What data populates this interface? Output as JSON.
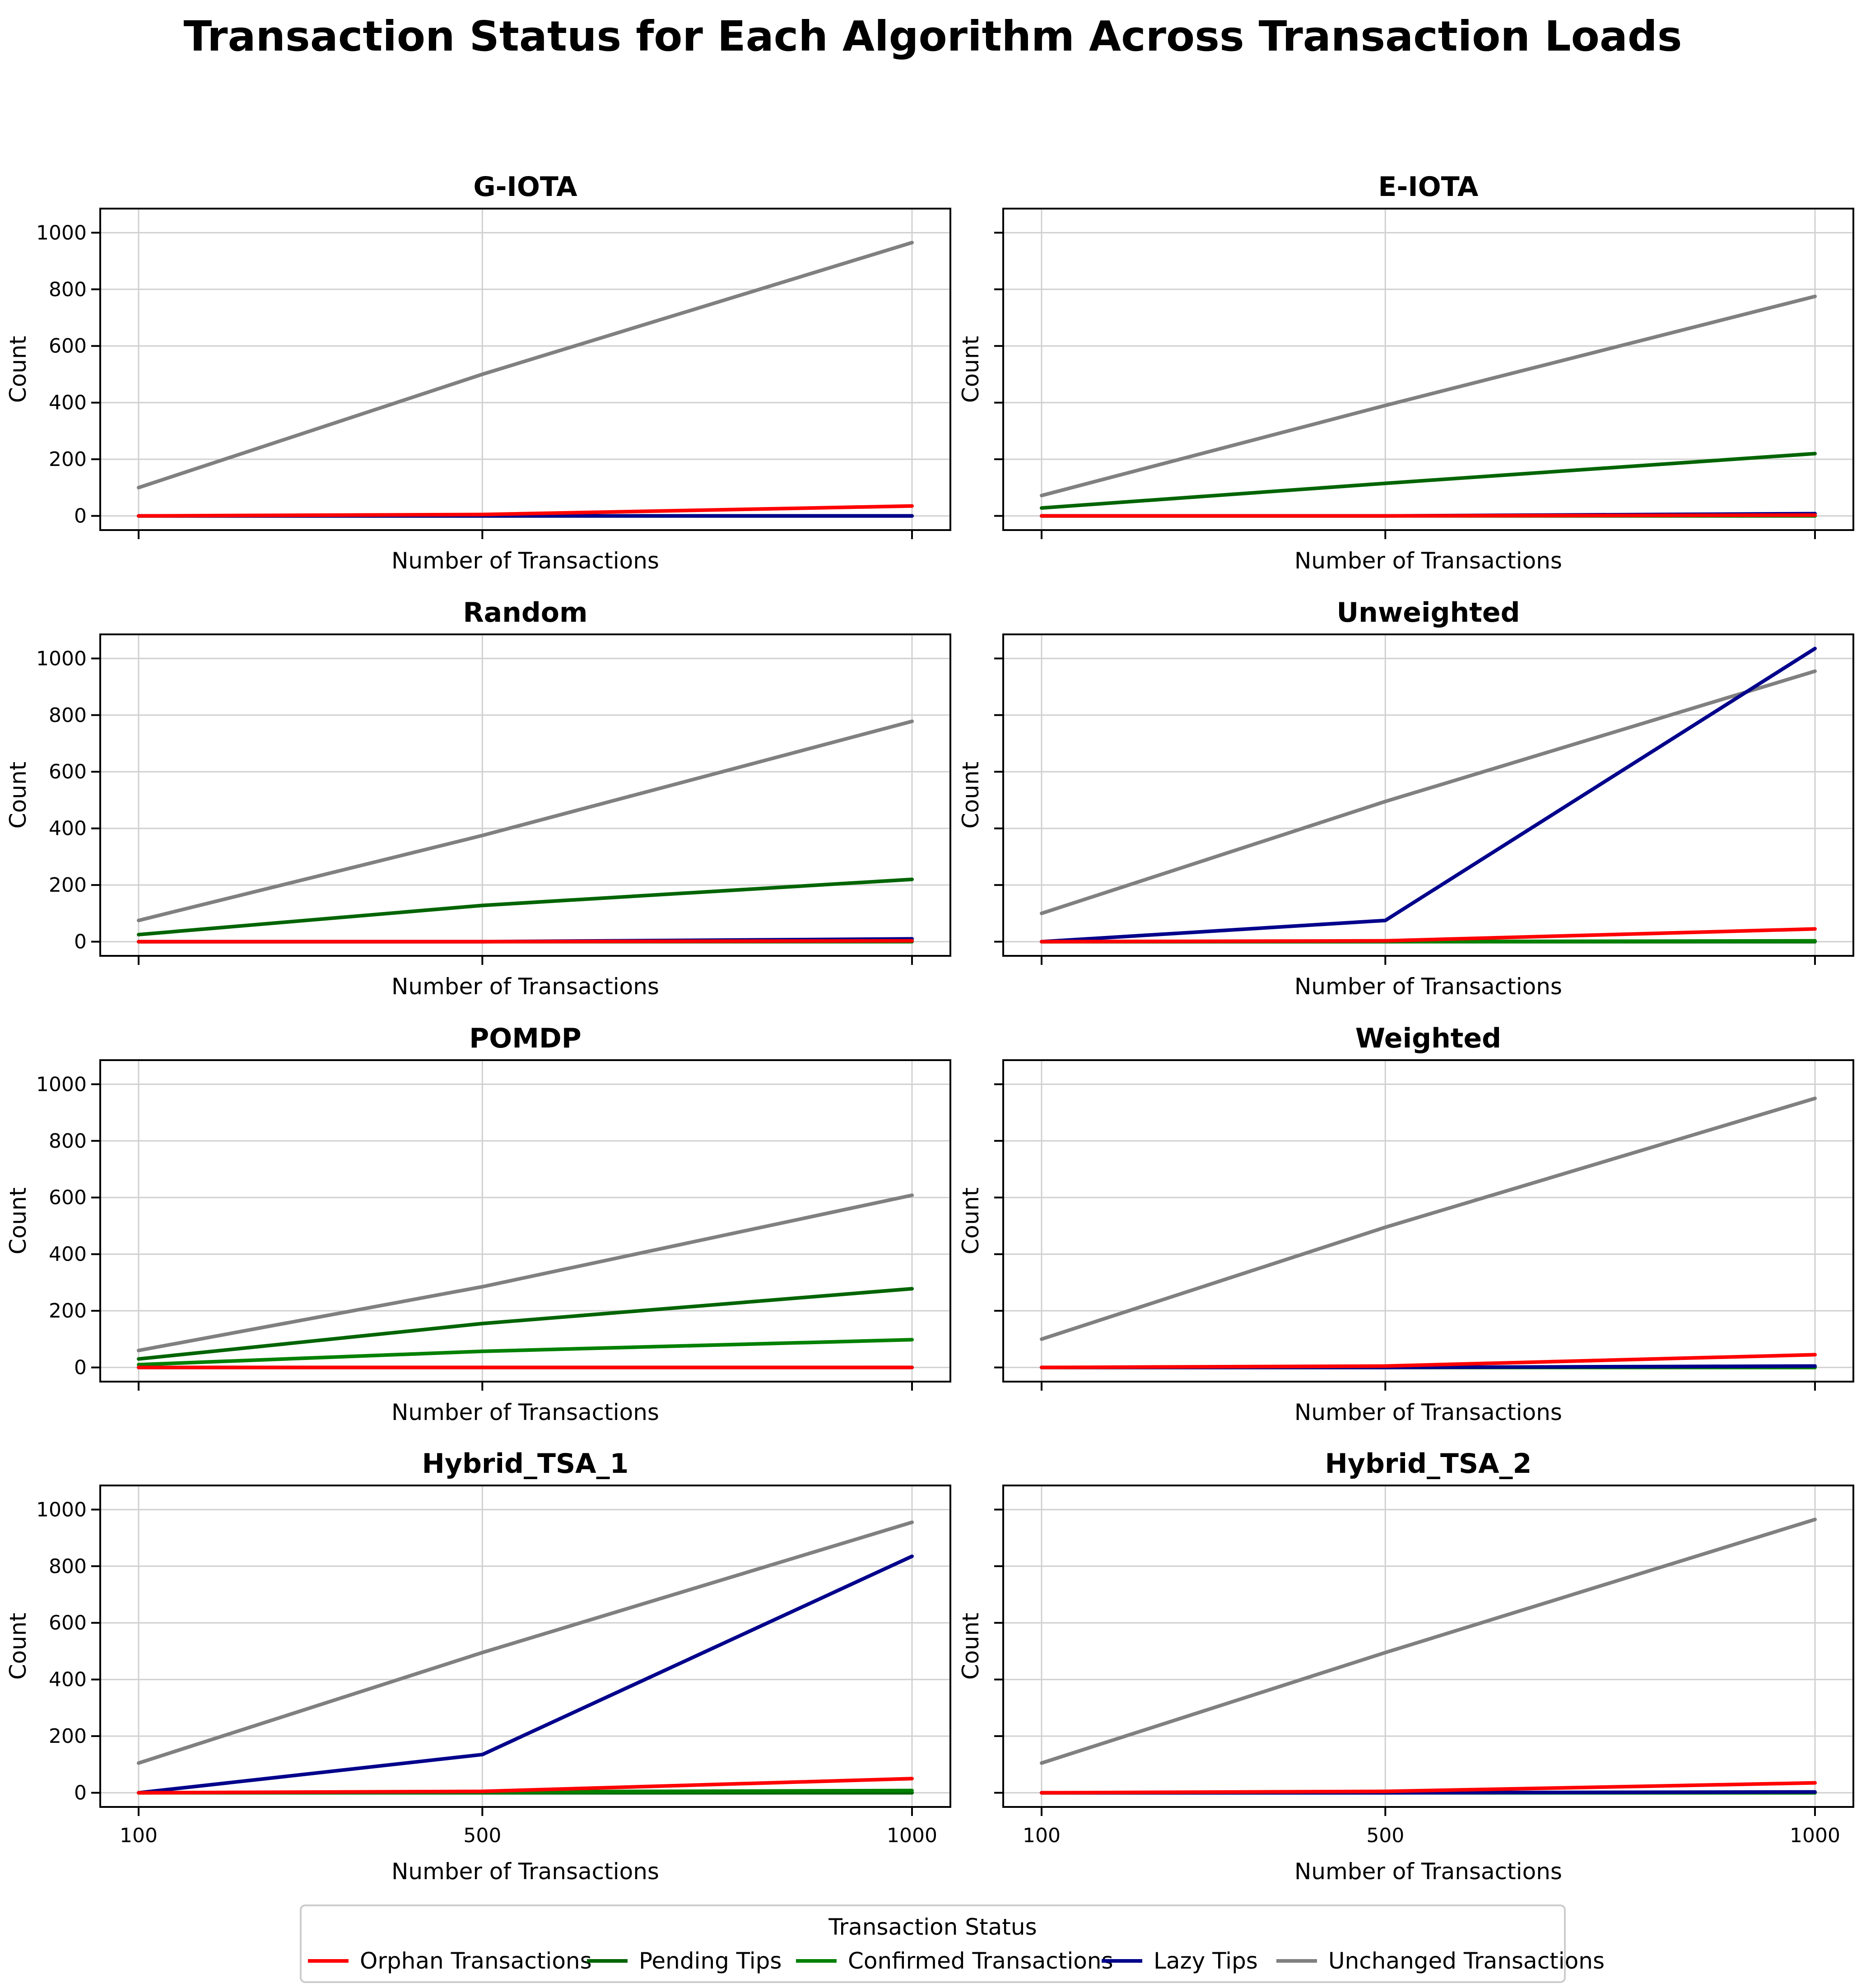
{
  "chart_data": {
    "type": "line",
    "title": "Transaction Status for Each Algorithm Across Transaction Loads",
    "x": [
      100,
      500,
      1000
    ],
    "xlabel": "Number of Transactions",
    "ylabel": "Count",
    "ylim": [
      -50,
      1085
    ],
    "yticks": [
      0,
      200,
      400,
      600,
      800,
      1000
    ],
    "grid": true,
    "legend": {
      "title": "Transaction Status",
      "placement": "bottom-center",
      "entries": [
        {
          "name": "Orphan Transactions",
          "color": "#ff0000"
        },
        {
          "name": "Pending Tips",
          "color": "#006400"
        },
        {
          "name": "Confirmed Transactions",
          "color": "#008000"
        },
        {
          "name": "Lazy Tips",
          "color": "#00008b"
        },
        {
          "name": "Unchanged Transactions",
          "color": "#808080"
        }
      ]
    },
    "panels": [
      {
        "title": "G-IOTA",
        "series": [
          {
            "name": "Unchanged Transactions",
            "values": [
              100,
              500,
              965
            ]
          },
          {
            "name": "Orphan Transactions",
            "values": [
              0,
              5,
              35
            ]
          },
          {
            "name": "Pending Tips",
            "values": [
              0,
              0,
              0
            ]
          },
          {
            "name": "Confirmed Transactions",
            "values": [
              0,
              0,
              0
            ]
          },
          {
            "name": "Lazy Tips",
            "values": [
              0,
              0,
              0
            ]
          }
        ]
      },
      {
        "title": "E-IOTA",
        "series": [
          {
            "name": "Unchanged Transactions",
            "values": [
              72,
              390,
              775
            ]
          },
          {
            "name": "Orphan Transactions",
            "values": [
              0,
              0,
              3
            ]
          },
          {
            "name": "Pending Tips",
            "values": [
              28,
              115,
              220
            ]
          },
          {
            "name": "Confirmed Transactions",
            "values": [
              0,
              0,
              0
            ]
          },
          {
            "name": "Lazy Tips",
            "values": [
              0,
              0,
              8
            ]
          }
        ]
      },
      {
        "title": "Random",
        "series": [
          {
            "name": "Unchanged Transactions",
            "values": [
              75,
              375,
              778
            ]
          },
          {
            "name": "Orphan Transactions",
            "values": [
              0,
              0,
              3
            ]
          },
          {
            "name": "Pending Tips",
            "values": [
              25,
              128,
              220
            ]
          },
          {
            "name": "Confirmed Transactions",
            "values": [
              0,
              0,
              0
            ]
          },
          {
            "name": "Lazy Tips",
            "values": [
              0,
              0,
              10
            ]
          }
        ]
      },
      {
        "title": "Unweighted",
        "series": [
          {
            "name": "Unchanged Transactions",
            "values": [
              100,
              495,
              955
            ]
          },
          {
            "name": "Orphan Transactions",
            "values": [
              0,
              3,
              45
            ]
          },
          {
            "name": "Pending Tips",
            "values": [
              0,
              0,
              0
            ]
          },
          {
            "name": "Confirmed Transactions",
            "values": [
              0,
              0,
              3
            ]
          },
          {
            "name": "Lazy Tips",
            "values": [
              0,
              75,
              1035
            ]
          }
        ]
      },
      {
        "title": "POMDP",
        "series": [
          {
            "name": "Unchanged Transactions",
            "values": [
              60,
              285,
              608
            ]
          },
          {
            "name": "Orphan Transactions",
            "values": [
              0,
              0,
              0
            ]
          },
          {
            "name": "Pending Tips",
            "values": [
              30,
              155,
              278
            ]
          },
          {
            "name": "Confirmed Transactions",
            "values": [
              10,
              57,
              98
            ]
          },
          {
            "name": "Lazy Tips",
            "values": [
              0,
              0,
              0
            ]
          }
        ]
      },
      {
        "title": "Weighted",
        "series": [
          {
            "name": "Unchanged Transactions",
            "values": [
              100,
              495,
              950
            ]
          },
          {
            "name": "Orphan Transactions",
            "values": [
              0,
              5,
              45
            ]
          },
          {
            "name": "Pending Tips",
            "values": [
              0,
              0,
              0
            ]
          },
          {
            "name": "Confirmed Transactions",
            "values": [
              0,
              0,
              0
            ]
          },
          {
            "name": "Lazy Tips",
            "values": [
              0,
              0,
              5
            ]
          }
        ]
      },
      {
        "title": "Hybrid_TSA_1",
        "series": [
          {
            "name": "Unchanged Transactions",
            "values": [
              105,
              495,
              955
            ]
          },
          {
            "name": "Orphan Transactions",
            "values": [
              0,
              5,
              50
            ]
          },
          {
            "name": "Pending Tips",
            "values": [
              0,
              0,
              0
            ]
          },
          {
            "name": "Confirmed Transactions",
            "values": [
              0,
              3,
              8
            ]
          },
          {
            "name": "Lazy Tips",
            "values": [
              0,
              135,
              835
            ]
          }
        ]
      },
      {
        "title": "Hybrid_TSA_2",
        "series": [
          {
            "name": "Unchanged Transactions",
            "values": [
              105,
              495,
              965
            ]
          },
          {
            "name": "Orphan Transactions",
            "values": [
              0,
              5,
              35
            ]
          },
          {
            "name": "Pending Tips",
            "values": [
              0,
              0,
              0
            ]
          },
          {
            "name": "Confirmed Transactions",
            "values": [
              0,
              0,
              0
            ]
          },
          {
            "name": "Lazy Tips",
            "values": [
              0,
              0,
              3
            ]
          }
        ]
      }
    ]
  }
}
